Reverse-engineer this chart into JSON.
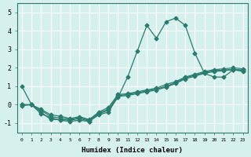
{
  "xlabel": "Humidex (Indice chaleur)",
  "ylabel": "",
  "bg_color": "#d6f0ee",
  "grid_color": "#ffffff",
  "line_color": "#2a7a6e",
  "xlim": [
    -0.5,
    23.5
  ],
  "ylim": [
    -1.5,
    5.5
  ],
  "xticks": [
    0,
    1,
    2,
    3,
    4,
    5,
    6,
    7,
    8,
    9,
    10,
    11,
    12,
    13,
    14,
    15,
    16,
    17,
    18,
    19,
    20,
    21,
    22,
    23
  ],
  "yticks": [
    -1,
    0,
    1,
    2,
    3,
    4,
    5
  ],
  "series": [
    {
      "x": [
        0,
        1,
        2,
        3,
        4,
        5,
        6,
        7,
        8,
        9,
        10,
        11,
        12,
        13,
        14,
        15,
        16,
        17,
        18,
        19,
        20,
        21,
        22,
        23
      ],
      "y": [
        1.0,
        0.0,
        -0.5,
        -0.7,
        -0.85,
        -0.9,
        -0.85,
        -0.9,
        -0.5,
        -0.3,
        0.4,
        1.5,
        2.9,
        4.3,
        3.6,
        4.5,
        4.7,
        4.3,
        2.8,
        1.7,
        1.5,
        1.5,
        1.9,
        1.8
      ]
    },
    {
      "x": [
        0,
        1,
        2,
        3,
        4,
        5,
        6,
        7,
        8,
        9,
        10,
        11,
        12,
        13,
        14,
        15,
        16,
        17,
        18,
        19,
        20,
        21,
        22,
        23
      ],
      "y": [
        0.0,
        0.0,
        -0.4,
        -0.8,
        -0.8,
        -0.85,
        -0.75,
        -0.9,
        -0.55,
        -0.4,
        0.45,
        0.5,
        0.6,
        0.7,
        0.8,
        0.95,
        1.15,
        1.4,
        1.55,
        1.7,
        1.8,
        1.85,
        1.9,
        1.85
      ]
    },
    {
      "x": [
        0,
        1,
        2,
        3,
        4,
        5,
        6,
        7,
        8,
        9,
        10,
        11,
        12,
        13,
        14,
        15,
        16,
        17,
        18,
        19,
        20,
        21,
        22,
        23
      ],
      "y": [
        0.0,
        0.0,
        -0.3,
        -0.65,
        -0.72,
        -0.8,
        -0.7,
        -0.85,
        -0.45,
        -0.25,
        0.5,
        0.55,
        0.65,
        0.75,
        0.85,
        1.0,
        1.2,
        1.45,
        1.6,
        1.75,
        1.85,
        1.88,
        1.92,
        1.88
      ]
    },
    {
      "x": [
        0,
        1,
        2,
        3,
        4,
        5,
        6,
        7,
        8,
        9,
        10,
        11,
        12,
        13,
        14,
        15,
        16,
        17,
        18,
        19,
        20,
        21,
        22,
        23
      ],
      "y": [
        -0.05,
        0.0,
        -0.25,
        -0.55,
        -0.62,
        -0.75,
        -0.65,
        -0.8,
        -0.4,
        -0.15,
        0.55,
        0.6,
        0.7,
        0.8,
        0.9,
        1.1,
        1.25,
        1.5,
        1.65,
        1.8,
        1.9,
        1.95,
        2.0,
        1.95
      ]
    }
  ]
}
